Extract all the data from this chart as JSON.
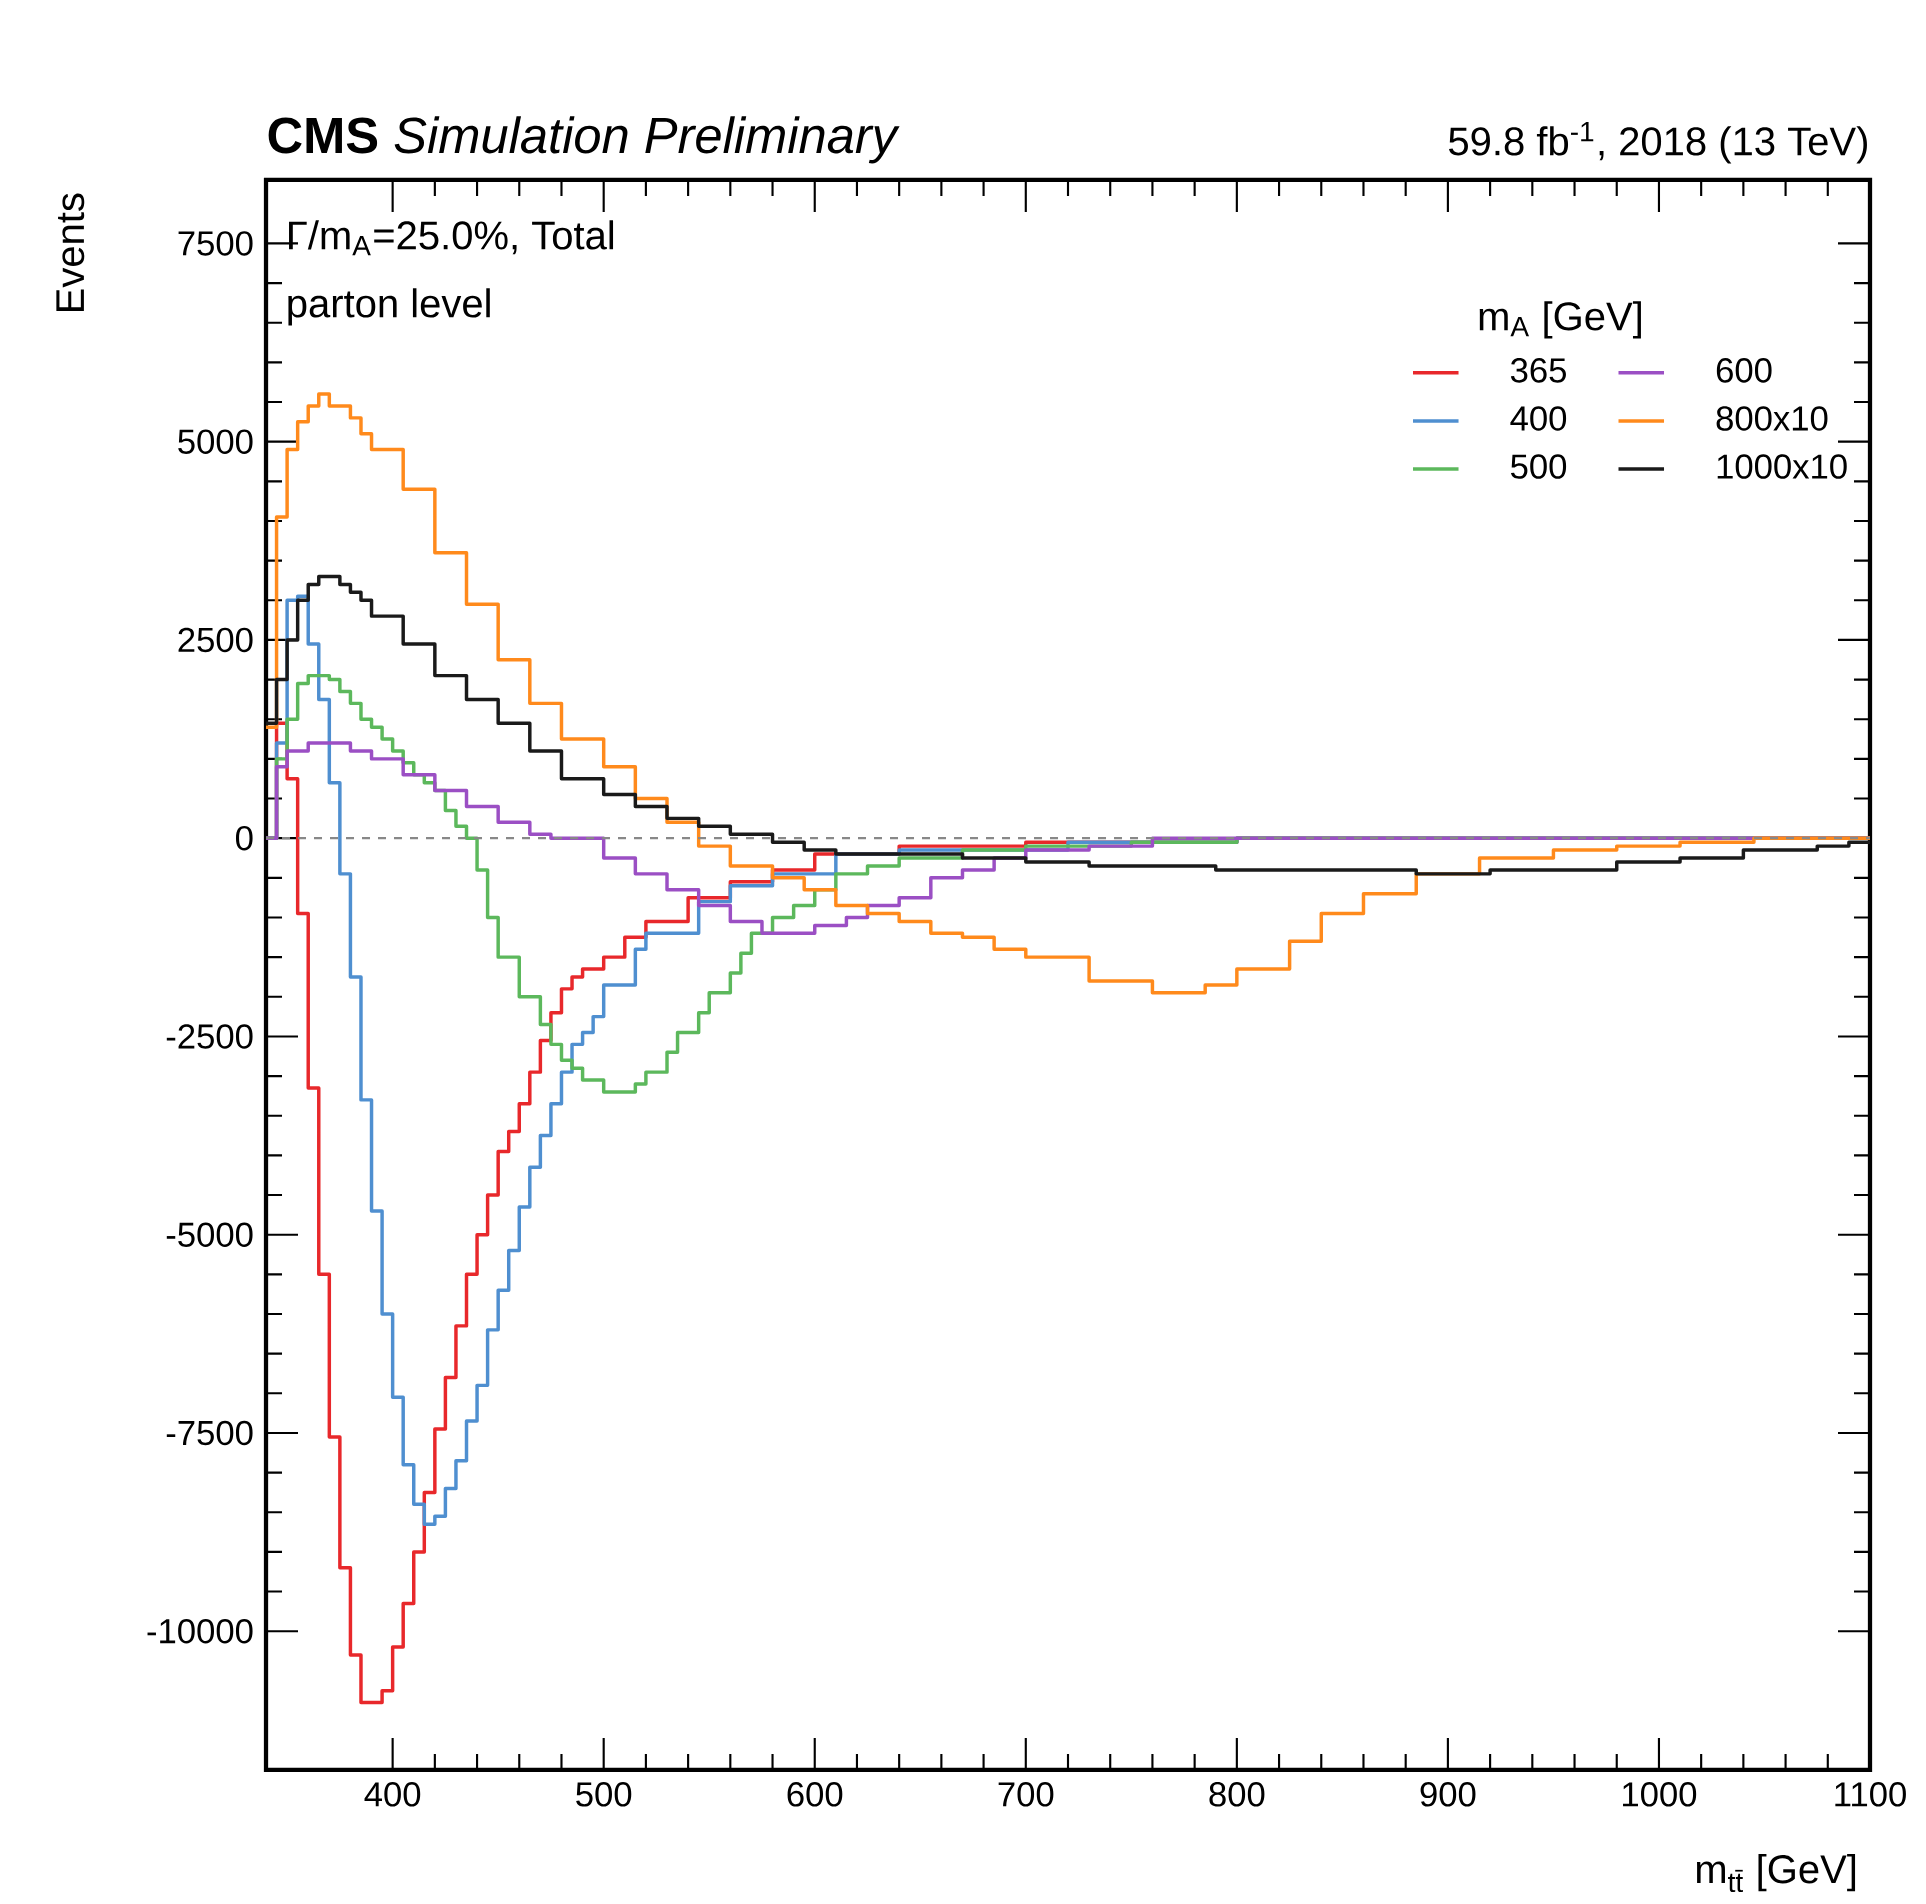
{
  "chart_data": {
    "type": "step",
    "title": "**CMS** *Simulation Preliminary*",
    "subtitle": "59.8 fb$^{-1}$, 2018 (13 TeV)",
    "xlabel": "m$_{tt̄}$ [GeV]",
    "ylabel": "Events",
    "legend_title": "m$_{A}$ [GeV]",
    "annotations": [
      "Γ/m$_{A}$=25.0%, Total",
      "parton level"
    ],
    "xlim": [
      340,
      1100
    ],
    "ylim": [
      -11750,
      8300
    ],
    "xticks": [
      400,
      500,
      600,
      700,
      800,
      900,
      1000,
      1100
    ],
    "yticks": [
      -10000,
      -7500,
      -5000,
      -2500,
      0,
      2500,
      5000,
      7500
    ],
    "legend": "top right",
    "ref_lines": [
      {
        "axis": "y",
        "value": 0,
        "color": "#888888",
        "line_style": "dashed"
      }
    ],
    "series": [
      {
        "name": "365",
        "color": "#e8282b",
        "x": [
          340,
          345,
          350,
          355,
          360,
          365,
          370,
          375,
          380,
          385,
          390,
          395,
          400,
          405,
          410,
          415,
          420,
          425,
          430,
          435,
          440,
          445,
          450,
          455,
          460,
          465,
          470,
          475,
          480,
          485,
          490,
          500,
          510,
          520,
          540,
          560,
          580,
          600,
          640,
          700,
          800,
          1100
        ],
        "values": [
          0,
          1450,
          750,
          -950,
          -3150,
          -5500,
          -7550,
          -9200,
          -10300,
          -10900,
          -10900,
          -10750,
          -10200,
          -9650,
          -9000,
          -8250,
          -7450,
          -6800,
          -6150,
          -5500,
          -5000,
          -4500,
          -3950,
          -3700,
          -3350,
          -2950,
          -2550,
          -2200,
          -1900,
          -1750,
          -1650,
          -1500,
          -1250,
          -1050,
          -750,
          -550,
          -400,
          -200,
          -100,
          -50,
          0,
          0
        ]
      },
      {
        "name": "400",
        "color": "#4f8fd0",
        "x": [
          340,
          345,
          350,
          355,
          360,
          365,
          370,
          375,
          380,
          385,
          390,
          395,
          400,
          405,
          410,
          415,
          420,
          425,
          430,
          435,
          440,
          445,
          450,
          455,
          460,
          465,
          470,
          475,
          480,
          485,
          490,
          495,
          500,
          515,
          520,
          545,
          560,
          580,
          610,
          640,
          720,
          800,
          1100
        ],
        "values": [
          0,
          1200,
          3000,
          3050,
          2450,
          1750,
          700,
          -450,
          -1750,
          -3300,
          -4700,
          -6000,
          -7050,
          -7900,
          -8400,
          -8650,
          -8550,
          -8200,
          -7850,
          -7350,
          -6900,
          -6200,
          -5700,
          -5200,
          -4650,
          -4150,
          -3750,
          -3350,
          -2950,
          -2600,
          -2450,
          -2250,
          -1850,
          -1400,
          -1200,
          -800,
          -600,
          -450,
          -200,
          -150,
          -50,
          0,
          0
        ]
      },
      {
        "name": "500",
        "color": "#5cb85c",
        "x": [
          340,
          345,
          350,
          355,
          360,
          365,
          370,
          375,
          380,
          385,
          390,
          395,
          400,
          405,
          410,
          415,
          420,
          425,
          430,
          435,
          440,
          445,
          450,
          460,
          470,
          475,
          480,
          485,
          490,
          500,
          510,
          515,
          520,
          530,
          535,
          545,
          550,
          560,
          565,
          570,
          580,
          590,
          600,
          610,
          625,
          640,
          670,
          700,
          750,
          800,
          1100
        ],
        "values": [
          0,
          1000,
          1500,
          1950,
          2050,
          2050,
          2000,
          1850,
          1700,
          1500,
          1400,
          1250,
          1100,
          950,
          800,
          700,
          600,
          350,
          150,
          0,
          -400,
          -1000,
          -1500,
          -2000,
          -2350,
          -2600,
          -2800,
          -2900,
          -3050,
          -3200,
          -3200,
          -3100,
          -2950,
          -2700,
          -2450,
          -2200,
          -1950,
          -1700,
          -1450,
          -1200,
          -1000,
          -850,
          -650,
          -450,
          -350,
          -250,
          -150,
          -100,
          -50,
          0,
          0
        ]
      },
      {
        "name": "600",
        "color": "#9b4fc4",
        "x": [
          340,
          345,
          350,
          360,
          370,
          380,
          390,
          405,
          420,
          435,
          450,
          465,
          475,
          500,
          515,
          530,
          545,
          560,
          575,
          590,
          600,
          615,
          625,
          640,
          655,
          670,
          685,
          700,
          730,
          760,
          1100
        ],
        "values": [
          0,
          900,
          1100,
          1200,
          1200,
          1100,
          1000,
          800,
          600,
          400,
          200,
          50,
          0,
          -250,
          -450,
          -650,
          -850,
          -1050,
          -1200,
          -1200,
          -1100,
          -1000,
          -850,
          -750,
          -500,
          -400,
          -250,
          -150,
          -100,
          0,
          0
        ]
      },
      {
        "name": "800x10",
        "color": "#ff8a1c",
        "x": [
          340,
          345,
          350,
          355,
          360,
          365,
          370,
          375,
          380,
          385,
          390,
          405,
          420,
          435,
          450,
          465,
          480,
          500,
          515,
          530,
          545,
          560,
          580,
          595,
          610,
          625,
          640,
          655,
          670,
          685,
          700,
          730,
          760,
          785,
          800,
          825,
          840,
          860,
          885,
          915,
          950,
          980,
          1010,
          1045,
          1100
        ],
        "values": [
          1400,
          4050,
          4900,
          5250,
          5450,
          5600,
          5450,
          5450,
          5300,
          5100,
          4900,
          4400,
          3600,
          2950,
          2250,
          1700,
          1250,
          900,
          500,
          200,
          -100,
          -350,
          -500,
          -650,
          -850,
          -950,
          -1050,
          -1200,
          -1250,
          -1400,
          -1500,
          -1800,
          -1950,
          -1850,
          -1650,
          -1300,
          -950,
          -700,
          -450,
          -250,
          -150,
          -100,
          -50,
          0,
          0
        ]
      },
      {
        "name": "1000x10",
        "color": "#1a1a1a",
        "x": [
          340,
          345,
          350,
          355,
          360,
          365,
          370,
          375,
          380,
          385,
          390,
          405,
          420,
          435,
          450,
          465,
          480,
          500,
          515,
          530,
          545,
          560,
          580,
          595,
          610,
          640,
          670,
          700,
          730,
          760,
          790,
          825,
          855,
          885,
          920,
          950,
          980,
          1010,
          1040,
          1075,
          1090,
          1100
        ],
        "values": [
          1450,
          2000,
          2500,
          3000,
          3200,
          3300,
          3300,
          3200,
          3100,
          3000,
          2800,
          2450,
          2050,
          1750,
          1450,
          1100,
          750,
          550,
          400,
          250,
          150,
          50,
          -50,
          -150,
          -200,
          -200,
          -250,
          -300,
          -350,
          -350,
          -400,
          -400,
          -400,
          -450,
          -400,
          -400,
          -300,
          -250,
          -150,
          -100,
          -50,
          -50
        ]
      }
    ]
  }
}
